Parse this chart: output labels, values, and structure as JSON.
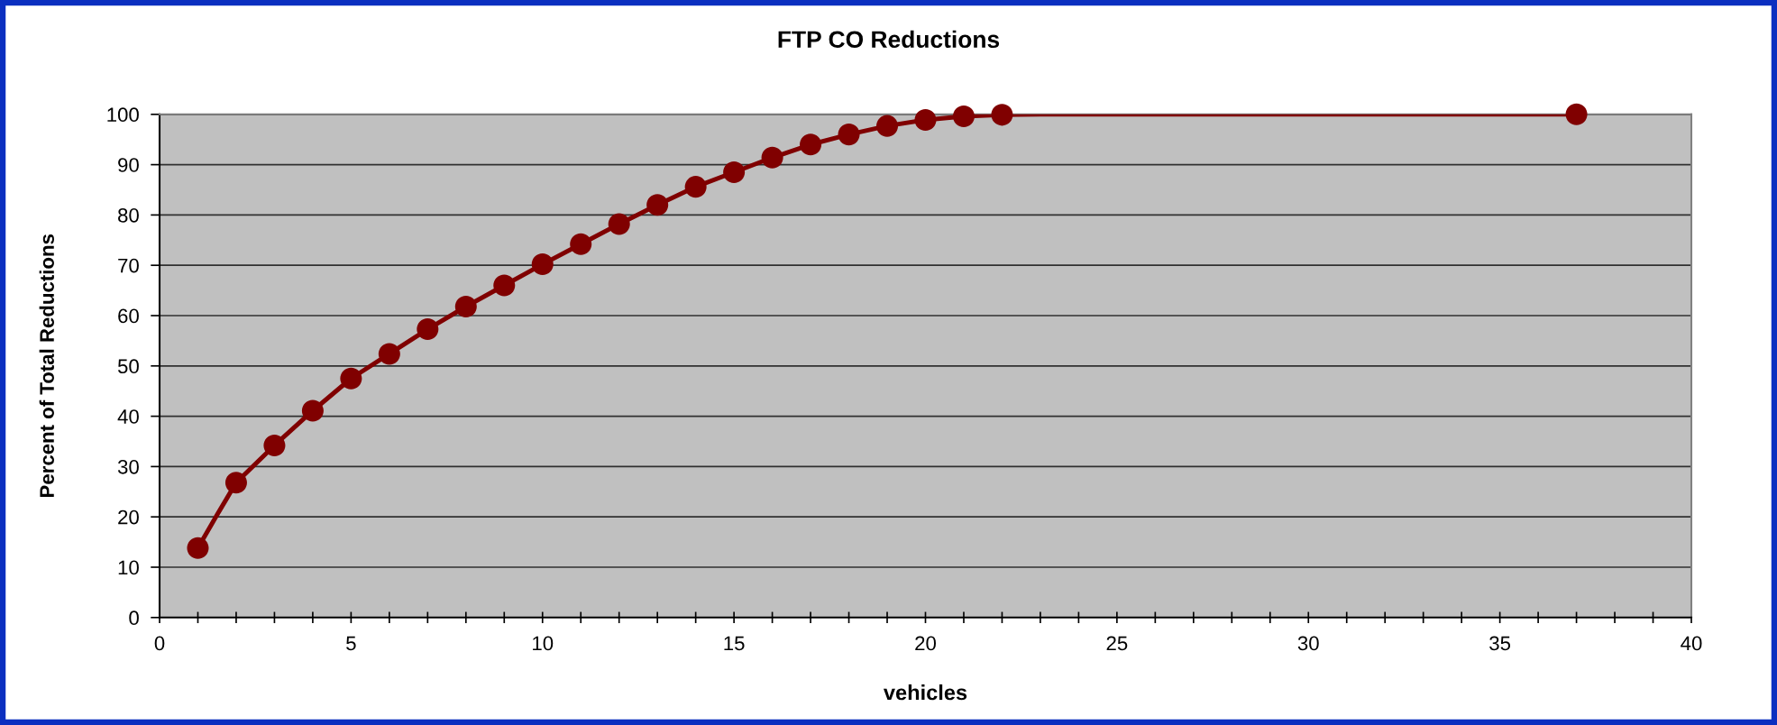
{
  "chart_data": {
    "type": "line",
    "title": "FTP CO Reductions",
    "xlabel": "vehicles",
    "ylabel": "Percent of Total Reductions",
    "series": [
      {
        "marker": "none",
        "line_style": "solid",
        "color": "#800000",
        "x": [
          1,
          1.5,
          2,
          3,
          4,
          5,
          6,
          7,
          8,
          9,
          10,
          11,
          12,
          13,
          14,
          15,
          16,
          17,
          18,
          19,
          20,
          21,
          22,
          23,
          36,
          37
        ],
        "values": [
          13.8,
          20.4,
          26.8,
          34.2,
          41.1,
          47.5,
          52.4,
          57.3,
          61.8,
          66.0,
          70.2,
          74.2,
          78.2,
          82.0,
          85.6,
          88.5,
          91.4,
          94.0,
          96.0,
          97.7,
          98.9,
          99.6,
          99.9,
          100,
          100,
          100
        ]
      },
      {
        "type": "scatter",
        "marker": "circle",
        "color": "#800000",
        "x": [
          1,
          2,
          3,
          4,
          5,
          6,
          7,
          8,
          9,
          10,
          11,
          12,
          13,
          14,
          15,
          16,
          17,
          18,
          19,
          20,
          21,
          22,
          37
        ],
        "values": [
          13.8,
          26.8,
          34.2,
          41.1,
          47.5,
          52.4,
          57.3,
          61.8,
          66.0,
          70.2,
          74.2,
          78.2,
          82.0,
          85.6,
          88.5,
          91.4,
          94.0,
          96.0,
          97.7,
          98.9,
          99.6,
          99.9,
          100
        ]
      }
    ],
    "xlim": [
      0,
      40
    ],
    "xticks": [
      0,
      {
        "value": 1,
        "label": null
      },
      {
        "value": 2,
        "label": null
      },
      {
        "value": 3,
        "label": null
      },
      {
        "value": 4,
        "label": null
      },
      5,
      {
        "value": 6,
        "label": null
      },
      {
        "value": 7,
        "label": null
      },
      {
        "value": 8,
        "label": null
      },
      {
        "value": 9,
        "label": null
      },
      10,
      {
        "value": 11,
        "label": null
      },
      {
        "value": 12,
        "label": null
      },
      {
        "value": 13,
        "label": null
      },
      {
        "value": 14,
        "label": null
      },
      15,
      {
        "value": 16,
        "label": null
      },
      {
        "value": 17,
        "label": null
      },
      {
        "value": 18,
        "label": null
      },
      {
        "value": 19,
        "label": null
      },
      20,
      {
        "value": 21,
        "label": null
      },
      {
        "value": 22,
        "label": null
      },
      {
        "value": 23,
        "label": null
      },
      {
        "value": 24,
        "label": null
      },
      25,
      {
        "value": 26,
        "label": null
      },
      {
        "value": 27,
        "label": null
      },
      {
        "value": 28,
        "label": null
      },
      {
        "value": 29,
        "label": null
      },
      30,
      {
        "value": 31,
        "label": null
      },
      {
        "value": 32,
        "label": null
      },
      {
        "value": 33,
        "label": null
      },
      {
        "value": 34,
        "label": null
      },
      35,
      {
        "value": 36,
        "label": null
      },
      {
        "value": 37,
        "label": null
      },
      {
        "value": 38,
        "label": null
      },
      {
        "value": 39,
        "label": null
      },
      40
    ],
    "ylim": [
      0,
      100
    ],
    "yticks": [
      0,
      10,
      20,
      30,
      40,
      50,
      60,
      70,
      80,
      90,
      100
    ],
    "grid": "y"
  }
}
